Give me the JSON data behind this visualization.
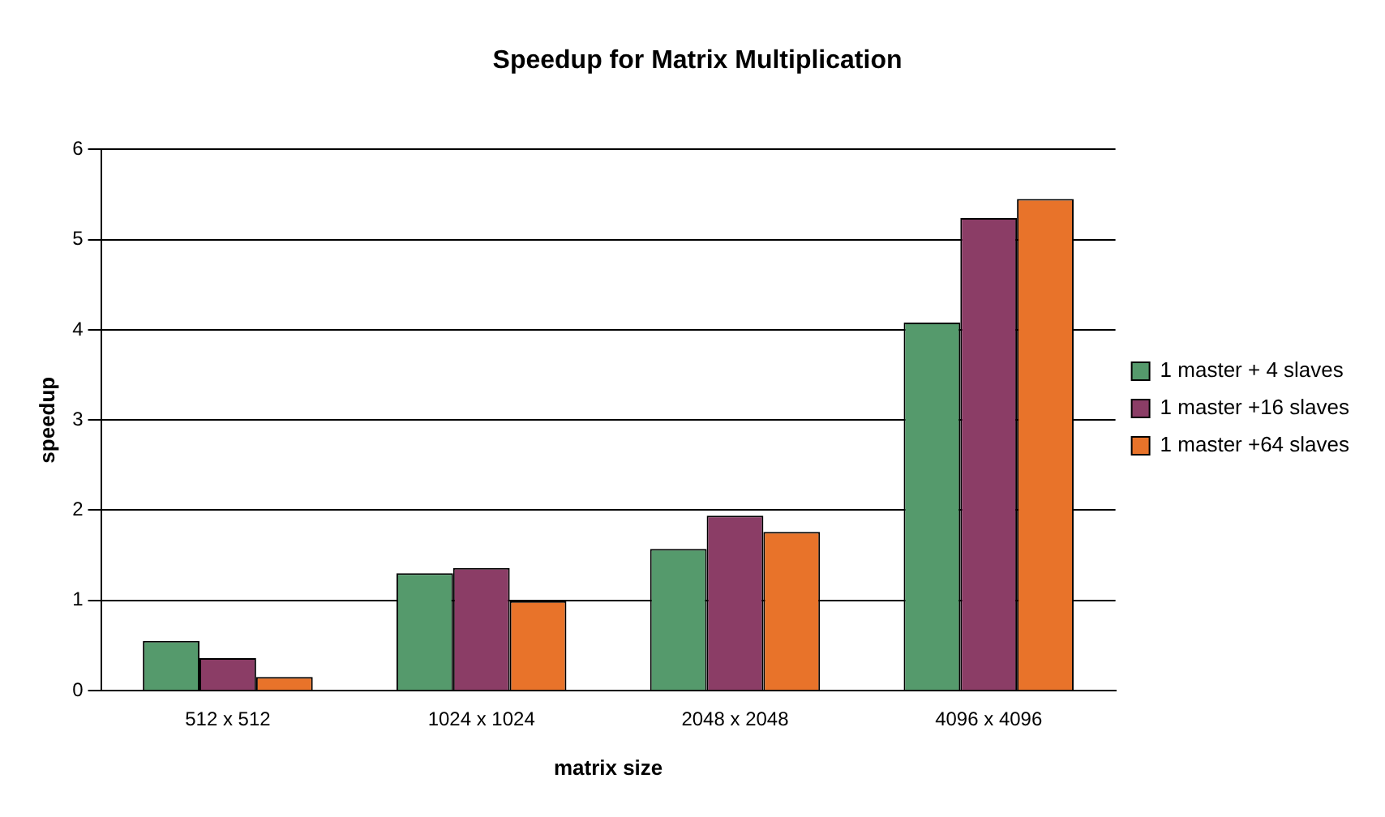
{
  "chart_data": {
    "type": "bar",
    "title": "Speedup for Matrix Multiplication",
    "xlabel": "matrix size",
    "ylabel": "speedup",
    "categories": [
      "512 x 512",
      "1024 x 1024",
      "2048 x 2048",
      "4096 x 4096"
    ],
    "series": [
      {
        "name": "1 master + 4 slaves",
        "color": "#559a6c",
        "values": [
          0.55,
          1.3,
          1.57,
          4.08
        ]
      },
      {
        "name": "1 master +16 slaves",
        "color": "#8b3d66",
        "values": [
          0.36,
          1.36,
          1.94,
          5.24
        ]
      },
      {
        "name": "1 master +64 slaves",
        "color": "#e8732a",
        "values": [
          0.15,
          0.99,
          1.76,
          5.45
        ]
      }
    ],
    "ylim": [
      0,
      6
    ],
    "yticks": [
      0,
      1,
      2,
      3,
      4,
      5,
      6
    ],
    "grid": "y",
    "legend": "right"
  }
}
